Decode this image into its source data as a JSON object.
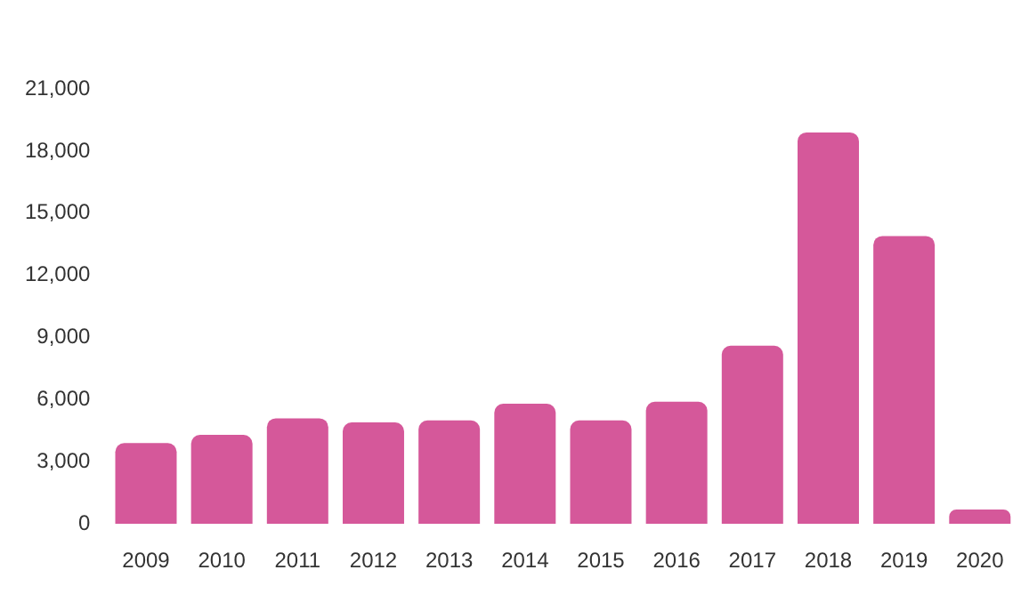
{
  "chart_data": {
    "type": "bar",
    "categories": [
      "2009",
      "2010",
      "2011",
      "2012",
      "2013",
      "2014",
      "2015",
      "2016",
      "2017",
      "2018",
      "2019",
      "2020"
    ],
    "values": [
      3900,
      4300,
      5100,
      4900,
      5000,
      5800,
      5000,
      5900,
      8600,
      18900,
      13900,
      700
    ],
    "color": "#d5589a",
    "ylim": [
      0,
      21000
    ],
    "yticks": [
      0,
      {
        "value": 3000,
        "label": "3,000"
      },
      {
        "value": 6000,
        "label": "6,000"
      },
      {
        "value": 9000,
        "label": "9,000"
      },
      {
        "value": 12000,
        "label": "12,000"
      },
      {
        "value": 15000,
        "label": "15,000"
      },
      {
        "value": 18000,
        "label": "18,000"
      },
      {
        "value": 21000,
        "label": "21,000"
      }
    ],
    "grid": false,
    "legend": false
  }
}
